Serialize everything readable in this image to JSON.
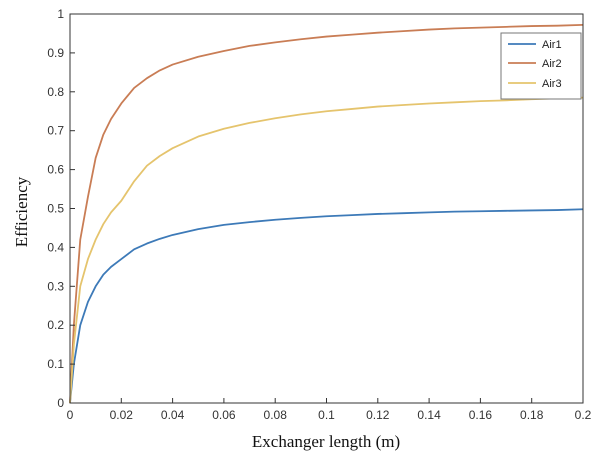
{
  "chart_data": {
    "type": "line",
    "title": "",
    "xlabel": "Exchanger length (m)",
    "ylabel": "Efficiency",
    "xlim": [
      0,
      0.2
    ],
    "ylim": [
      0,
      1
    ],
    "xticks": [
      "0",
      "0.02",
      "0.04",
      "0.06",
      "0.08",
      "0.1",
      "0.12",
      "0.14",
      "0.16",
      "0.18",
      "0.2"
    ],
    "yticks": [
      "0",
      "0.1",
      "0.2",
      "0.3",
      "0.4",
      "0.5",
      "0.6",
      "0.7",
      "0.8",
      "0.9",
      "1"
    ],
    "grid": false,
    "legend_position": "top-right",
    "x": [
      0,
      0.0015,
      0.004,
      0.007,
      0.01,
      0.013,
      0.016,
      0.02,
      0.025,
      0.03,
      0.035,
      0.04,
      0.05,
      0.06,
      0.07,
      0.08,
      0.09,
      0.1,
      0.11,
      0.12,
      0.13,
      0.14,
      0.15,
      0.16,
      0.17,
      0.18,
      0.19,
      0.2
    ],
    "series": [
      {
        "name": "Air1",
        "color": "#3d7ab8",
        "values": [
          0,
          0.1,
          0.2,
          0.26,
          0.3,
          0.33,
          0.35,
          0.37,
          0.395,
          0.41,
          0.422,
          0.432,
          0.447,
          0.458,
          0.465,
          0.471,
          0.476,
          0.48,
          0.483,
          0.486,
          0.488,
          0.49,
          0.492,
          0.493,
          0.494,
          0.495,
          0.496,
          0.498
        ]
      },
      {
        "name": "Air2",
        "color": "#c97d55",
        "values": [
          0,
          0.2,
          0.42,
          0.53,
          0.63,
          0.69,
          0.73,
          0.77,
          0.81,
          0.835,
          0.855,
          0.87,
          0.89,
          0.905,
          0.918,
          0.927,
          0.935,
          0.942,
          0.947,
          0.952,
          0.956,
          0.96,
          0.963,
          0.965,
          0.967,
          0.969,
          0.97,
          0.972
        ]
      },
      {
        "name": "Air3",
        "color": "#e5c46d",
        "values": [
          0,
          0.15,
          0.3,
          0.37,
          0.42,
          0.46,
          0.49,
          0.52,
          0.57,
          0.61,
          0.635,
          0.655,
          0.685,
          0.705,
          0.72,
          0.732,
          0.742,
          0.75,
          0.756,
          0.762,
          0.766,
          0.77,
          0.773,
          0.776,
          0.778,
          0.781,
          0.783,
          0.785
        ]
      }
    ]
  }
}
